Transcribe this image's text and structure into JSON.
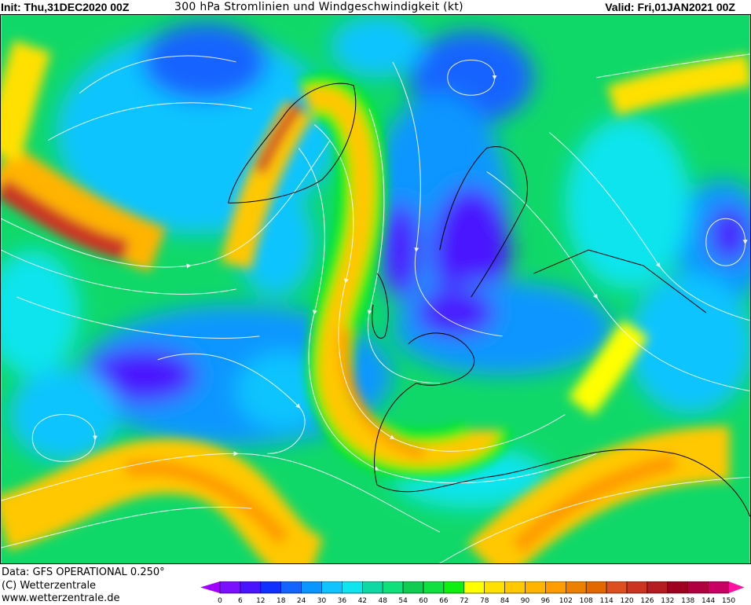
{
  "header": {
    "init": "Init: Thu,31DEC2020 00Z",
    "title": "300 hPa Stromlinien und Windgeschwindigkeit (kt)",
    "valid": "Valid: Fri,01JAN2021 00Z"
  },
  "footer": {
    "data_source": "Data: GFS OPERATIONAL 0.250°",
    "copyright": "(C) Wetterzentrale",
    "website": "www.wetterzentrale.de"
  },
  "legend": {
    "unit": "kt",
    "ticks": [
      "0",
      "6",
      "12",
      "18",
      "24",
      "30",
      "36",
      "42",
      "48",
      "54",
      "60",
      "66",
      "72",
      "78",
      "84",
      "90",
      "96",
      "102",
      "108",
      "114",
      "120",
      "126",
      "132",
      "138",
      "144",
      "150"
    ],
    "colors": [
      "#7a10ff",
      "#4a14ff",
      "#1030ff",
      "#1464ff",
      "#0a96ff",
      "#10c4ff",
      "#10e4ee",
      "#10d8a4",
      "#10e07c",
      "#10cc50",
      "#10e040",
      "#10f010",
      "#ffff00",
      "#ffe000",
      "#ffc800",
      "#ffb400",
      "#ff9c00",
      "#ee8000",
      "#e46800",
      "#dc5020",
      "#cc3422",
      "#b41c22",
      "#a00020",
      "#b00040",
      "#c80064"
    ],
    "under_color": "#a000ff",
    "over_color": "#ff10a0"
  },
  "map": {
    "variable": "300 hPa wind speed and streamlines",
    "background_color": "#10d868",
    "streamline_color": "#ffffff",
    "coastline_color": "#000000"
  }
}
